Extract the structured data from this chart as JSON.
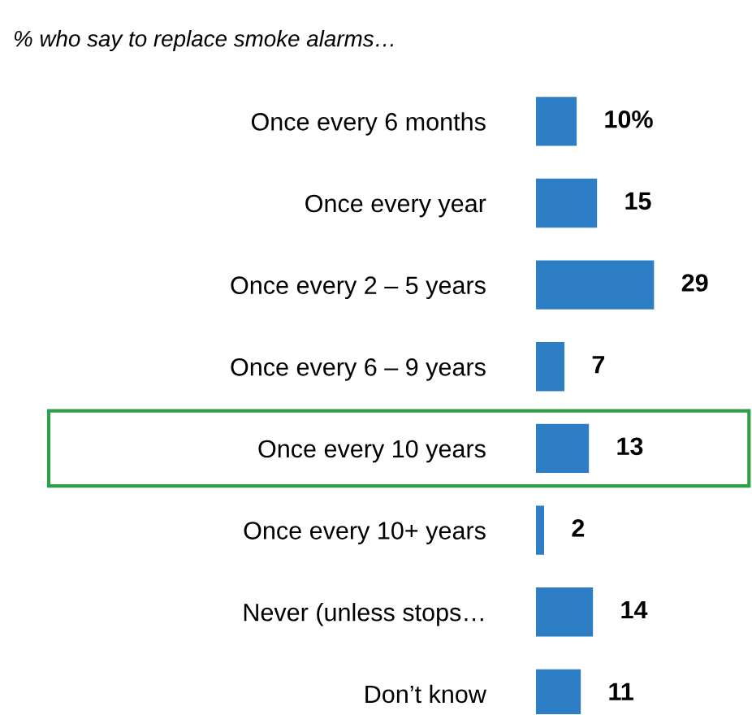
{
  "chart_data": {
    "type": "bar",
    "orientation": "horizontal",
    "title": "% who say to replace smoke alarms…",
    "categories": [
      "Once every 6 months",
      "Once every year",
      "Once every 2 – 5 years",
      "Once every 6 – 9 years",
      "Once every 10 years",
      "Once every 10+ years",
      "Never (unless stops…",
      "Don’t know"
    ],
    "values": [
      10,
      15,
      29,
      7,
      13,
      2,
      14,
      11
    ],
    "value_labels": [
      "10%",
      "15",
      "29",
      "7",
      "13",
      "2",
      "14",
      "11"
    ],
    "color": "#2e7ec6",
    "grid": false,
    "legend": false
  }
}
